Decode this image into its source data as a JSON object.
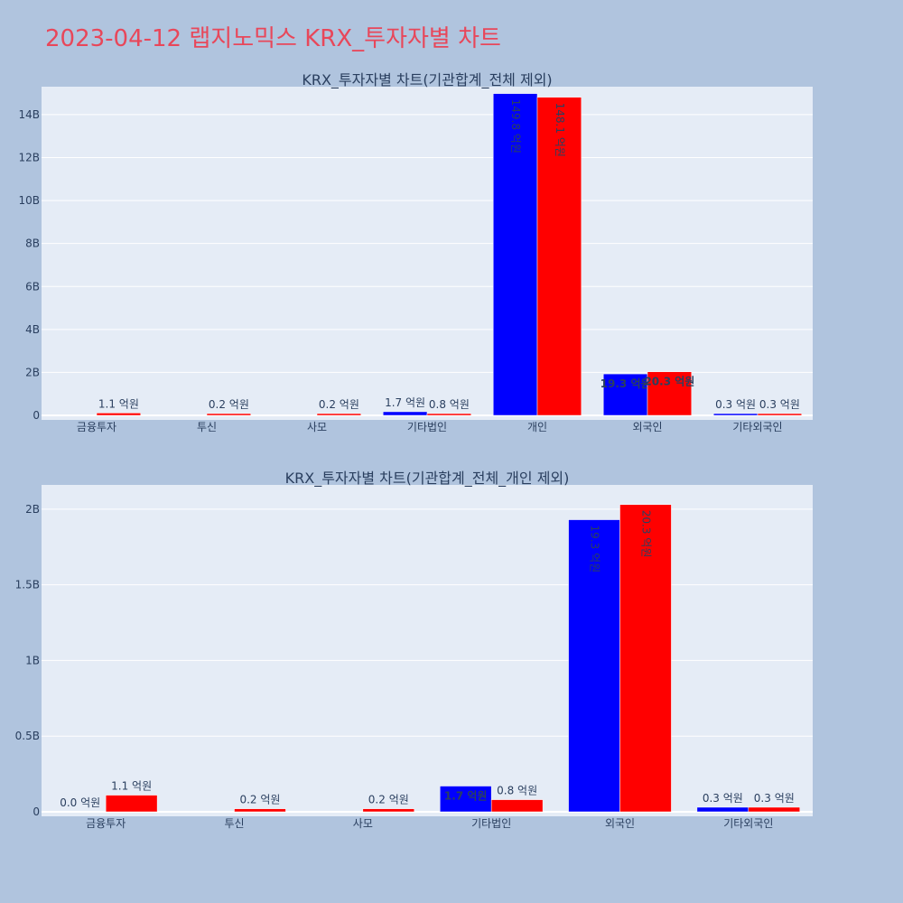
{
  "page": {
    "title": "2023-04-12 랩지노믹스 KRX_투자자별 차트"
  },
  "colors": {
    "background": "#b0c4de",
    "plot_background": "#e5ecf6",
    "series_a": "#0000ff",
    "series_b": "#ff0000",
    "title": "#e8475a",
    "text": "#2a3f5f"
  },
  "chart_data": [
    {
      "type": "bar",
      "title": "KRX_투자자별 차트(기관합계_전체 제외)",
      "categories": [
        "금융투자",
        "투신",
        "사모",
        "기타법인",
        "개인",
        "외국인",
        "기타외국인"
      ],
      "ylim": [
        0,
        15300000000
      ],
      "y_ticks": [
        0,
        2000000000,
        4000000000,
        6000000000,
        8000000000,
        10000000000,
        12000000000,
        14000000000
      ],
      "y_tick_labels": [
        "0",
        "2B",
        "4B",
        "6B",
        "8B",
        "10B",
        "12B",
        "14B"
      ],
      "grid": true,
      "series": [
        {
          "values": [
            0,
            0,
            0,
            170000000,
            14980000000,
            1930000000,
            30000000
          ],
          "labels": [
            "",
            "",
            "",
            "1.7 억원",
            "149.8 억원",
            "19.3 억원",
            "0.3 억원"
          ]
        },
        {
          "values": [
            110000000,
            20000000,
            20000000,
            80000000,
            14810000000,
            2030000000,
            30000000
          ],
          "labels": [
            "1.1 억원",
            "0.2 억원",
            "0.2 억원",
            "0.8 억원",
            "148.1 억원",
            "20.3 억원",
            "0.3 억원"
          ]
        }
      ]
    },
    {
      "type": "bar",
      "title": "KRX_투자자별 차트(기관합계_전체_개인 제외)",
      "categories": [
        "금융투자",
        "투신",
        "사모",
        "기타법인",
        "외국인",
        "기타외국인"
      ],
      "ylim": [
        0,
        2160000000
      ],
      "y_ticks": [
        0,
        500000000,
        1000000000,
        1500000000,
        2000000000
      ],
      "y_tick_labels": [
        "0",
        "0.5B",
        "1B",
        "1.5B",
        "2B"
      ],
      "grid": true,
      "series": [
        {
          "values": [
            0,
            0,
            0,
            170000000,
            1930000000,
            30000000
          ],
          "labels": [
            "0.0 억원",
            "",
            "",
            "1.7 억원",
            "19.3 억원",
            "0.3 억원"
          ]
        },
        {
          "values": [
            110000000,
            20000000,
            20000000,
            80000000,
            2030000000,
            30000000
          ],
          "labels": [
            "1.1 억원",
            "0.2 억원",
            "0.2 억원",
            "0.8 억원",
            "20.3 억원",
            "0.3 억원"
          ]
        }
      ]
    }
  ]
}
